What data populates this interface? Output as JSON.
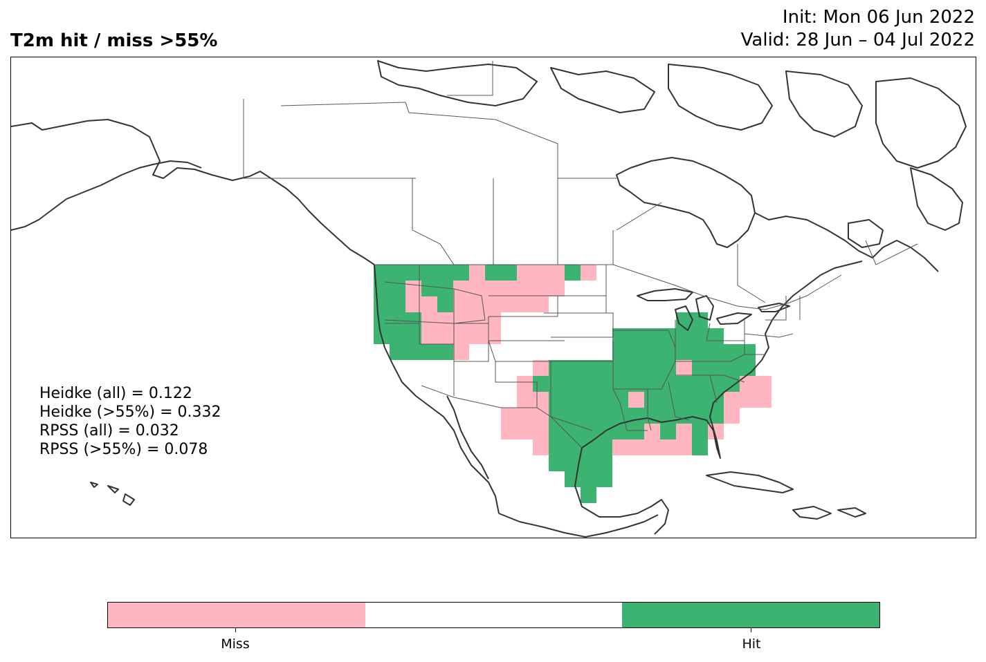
{
  "title": "T2m hit / miss  >55%",
  "init": "Init: Mon 06 Jun 2022",
  "valid": "Valid: 28 Jun – 04 Jul 2022",
  "stats": [
    "Heidke (all) = 0.122",
    "Heidke (>55%) = 0.332",
    "RPSS (all) = 0.032",
    "RPSS (>55%) = 0.078"
  ],
  "colorbar": {
    "segments": [
      {
        "name": "Miss",
        "color": "#ffb6c1"
      },
      {
        "name": "",
        "color": "#ffffff"
      },
      {
        "name": "Hit",
        "color": "#3cb371"
      }
    ],
    "tick_labels": [
      "Miss",
      "Hit"
    ]
  },
  "colors": {
    "miss": "#ffb6c1",
    "hit": "#3cb371",
    "coast": "#333333",
    "border": "#444444"
  },
  "chart_data": {
    "type": "heatmap",
    "categories": [
      "Miss",
      "Hit"
    ],
    "title": "T2m hit / miss  >55%",
    "region": "North America",
    "grid_resolution_deg": 1.5
  }
}
